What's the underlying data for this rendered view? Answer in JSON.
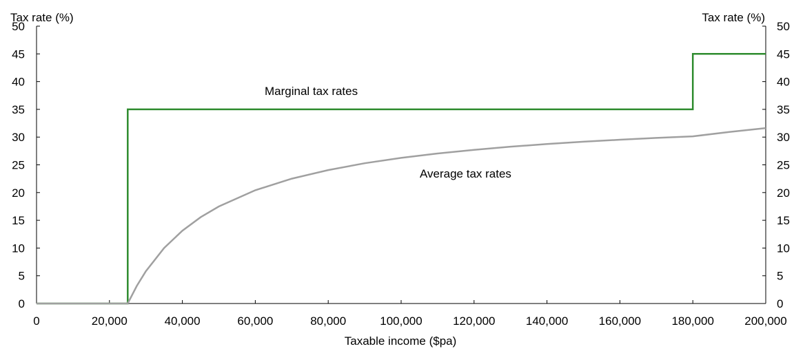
{
  "chart_data": {
    "type": "line",
    "xlabel": "Taxable income ($pa)",
    "ylabel_left": "Tax rate (%)",
    "ylabel_right": "Tax rate (%)",
    "xlim": [
      0,
      200000
    ],
    "ylim": [
      0,
      50
    ],
    "x_ticks": [
      0,
      20000,
      40000,
      60000,
      80000,
      100000,
      120000,
      140000,
      160000,
      180000,
      200000
    ],
    "x_tick_labels": [
      "0",
      "20,000",
      "40,000",
      "60,000",
      "80,000",
      "100,000",
      "120,000",
      "140,000",
      "160,000",
      "180,000",
      "200,000"
    ],
    "y_ticks": [
      0,
      5,
      10,
      15,
      20,
      25,
      30,
      35,
      40,
      45,
      50
    ],
    "y_tick_labels": [
      "0",
      "5",
      "10",
      "15",
      "20",
      "25",
      "30",
      "35",
      "40",
      "45",
      "50"
    ],
    "grid": false,
    "legend": "none",
    "series": [
      {
        "label_text": "Marginal tax rates",
        "color": "#2e8b2e",
        "x": [
          0,
          25000,
          25000,
          180000,
          180000,
          200000
        ],
        "y": [
          0,
          0,
          35,
          35,
          45,
          45
        ]
      },
      {
        "label_text": "Average tax rates",
        "color": "#a0a0a0",
        "x": [
          0,
          25000,
          27500,
          30000,
          35000,
          40000,
          45000,
          50000,
          60000,
          70000,
          80000,
          90000,
          100000,
          110000,
          120000,
          130000,
          140000,
          150000,
          160000,
          170000,
          180000,
          190000,
          200000
        ],
        "y": [
          0,
          0,
          3.18,
          5.83,
          10.0,
          13.13,
          15.56,
          17.5,
          20.42,
          22.5,
          24.06,
          25.28,
          26.25,
          27.05,
          27.71,
          28.27,
          28.75,
          29.17,
          29.53,
          29.85,
          30.14,
          30.92,
          31.63
        ]
      }
    ]
  }
}
